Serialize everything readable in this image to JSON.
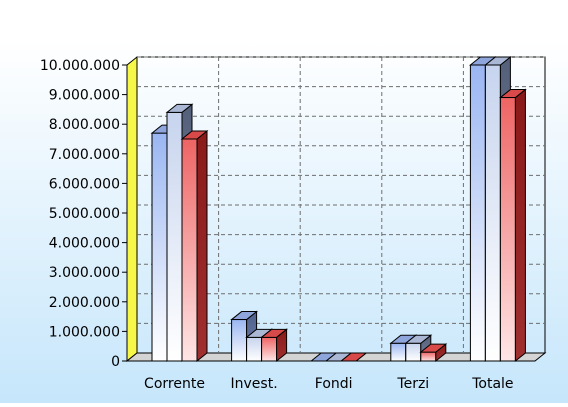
{
  "chart_data": {
    "type": "bar",
    "categories": [
      "Corrente",
      "Invest.",
      "Fondi",
      "Terzi",
      "Totale"
    ],
    "series": [
      {
        "values": [
          7700000,
          1400000,
          0,
          600000,
          10000000
        ],
        "color": "#9db9f0"
      },
      {
        "values": [
          8400000,
          800000,
          0,
          600000,
          10000000
        ],
        "color": "#b8c8e8"
      },
      {
        "values": [
          7500000,
          800000,
          0,
          300000,
          8900000
        ],
        "color": "#ee6c6c"
      }
    ],
    "y_ticks": [
      "0",
      "1.000.000",
      "2.000.000",
      "3.000.000",
      "4.000.000",
      "5.000.000",
      "6.000.000",
      "7.000.000",
      "8.000.000",
      "9.000.000",
      "10.000.000"
    ],
    "ylim": [
      0,
      10000000
    ],
    "grid": true,
    "legend": "none"
  },
  "colors": {
    "background_top": "#ffffff",
    "background_bottom": "#c6e6fb",
    "wall_left": "#f7f74a",
    "floor": "#d4d4d4",
    "grid": "#6e6e6e"
  }
}
